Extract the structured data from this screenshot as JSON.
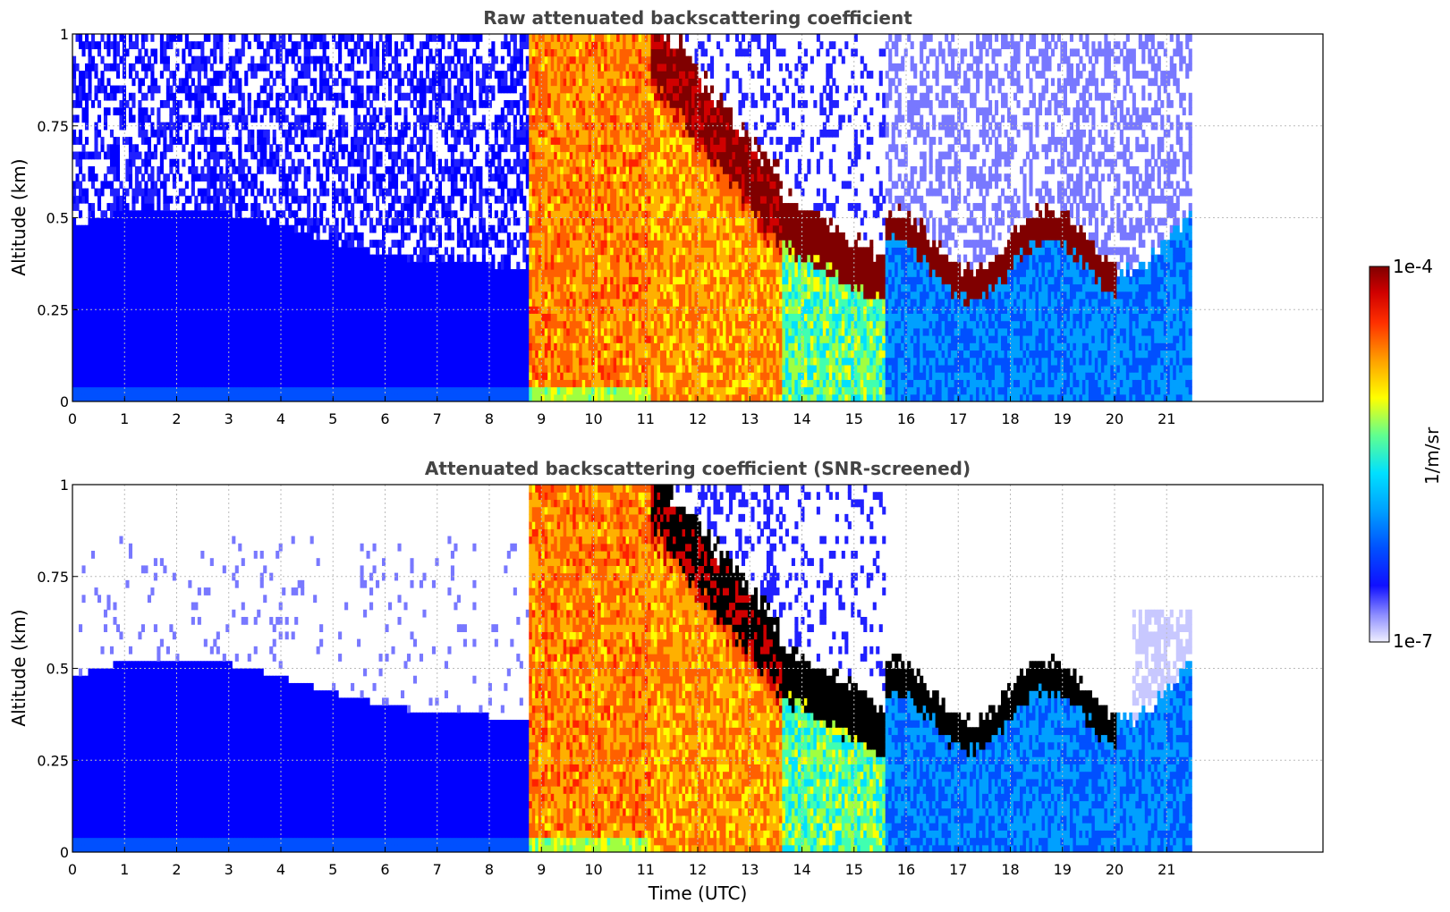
{
  "chart_data": [
    {
      "type": "heatmap",
      "title": "Raw attenuated backscattering coefficient",
      "ylabel": "Altitude (km)",
      "xlabel": "",
      "xlim": [
        0,
        24
      ],
      "ylim": [
        0,
        1
      ],
      "x_ticks": [
        "0",
        "1",
        "2",
        "3",
        "4",
        "5",
        "6",
        "7",
        "8",
        "9",
        "10",
        "11",
        "12",
        "13",
        "14",
        "15",
        "16",
        "17",
        "18",
        "19",
        "20",
        "21"
      ],
      "y_ticks": [
        "0",
        "0.25",
        "0.5",
        "0.75",
        "1"
      ],
      "data_extent_hours": [
        0,
        21.45
      ],
      "grid": true,
      "regions": [
        {
          "t0": 0.0,
          "t1": 8.7,
          "kind": "clear-air",
          "level": 0.25
        },
        {
          "t0": 8.7,
          "t1": 11.1,
          "kind": "fog-thick",
          "level": 0.75
        },
        {
          "t0": 11.1,
          "t1": 13.6,
          "kind": "fog-lifting",
          "top": 0.55,
          "level": 0.72
        },
        {
          "t0": 13.6,
          "t1": 15.6,
          "kind": "cloud-base",
          "top": 0.33,
          "level": 0.55
        },
        {
          "t0": 15.6,
          "t1": 21.45,
          "kind": "boundary-layer",
          "top": 0.35,
          "level": 0.35
        }
      ]
    },
    {
      "type": "heatmap",
      "title": "Attenuated backscattering coefficient (SNR-screened)",
      "ylabel": "Altitude (km)",
      "xlabel": "Time (UTC)",
      "xlim": [
        0,
        24
      ],
      "ylim": [
        0,
        1
      ],
      "x_ticks": [
        "0",
        "1",
        "2",
        "3",
        "4",
        "5",
        "6",
        "7",
        "8",
        "9",
        "10",
        "11",
        "12",
        "13",
        "14",
        "15",
        "16",
        "17",
        "18",
        "19",
        "20",
        "21"
      ],
      "y_ticks": [
        "0",
        "0.25",
        "0.5",
        "0.75",
        "1"
      ],
      "data_extent_hours": [
        0,
        21.45
      ],
      "grid": true,
      "regions": [
        {
          "t0": 0.0,
          "t1": 8.7,
          "kind": "clear-air-screened",
          "level": 0.25
        },
        {
          "t0": 8.7,
          "t1": 11.1,
          "kind": "fog-thick",
          "level": 0.75
        },
        {
          "t0": 11.1,
          "t1": 13.6,
          "kind": "fog-lifting",
          "top": 0.55,
          "level": 0.72
        },
        {
          "t0": 13.6,
          "t1": 15.6,
          "kind": "cloud-base",
          "top": 0.33,
          "level": 0.55
        },
        {
          "t0": 15.6,
          "t1": 21.45,
          "kind": "boundary-layer",
          "top": 0.35,
          "level": 0.35
        }
      ]
    }
  ],
  "colorbar": {
    "label": "1/m/sr",
    "max_label": "1e-4",
    "min_label": "1e-7",
    "range": [
      1e-07,
      0.0001
    ],
    "scale": "log",
    "colormap": [
      "#f0f0ff",
      "#c8c8ff",
      "#7878ff",
      "#2020ff",
      "#0000ff",
      "#0050ff",
      "#00a0ff",
      "#00e0ff",
      "#40ffb0",
      "#a0ff40",
      "#ffff00",
      "#ffb000",
      "#ff6000",
      "#ff2000",
      "#d00000",
      "#800000"
    ]
  }
}
